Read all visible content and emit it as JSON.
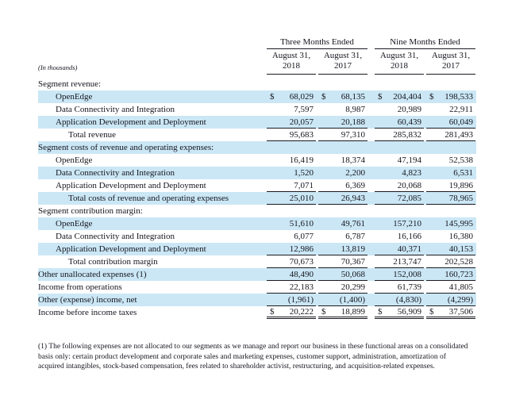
{
  "colors": {
    "row_shade": "#cbe7f5",
    "text": "#15151e",
    "rule": "#1a1a22"
  },
  "table": {
    "in_thousands_note": "(In thousands)",
    "group_headers": [
      "Three Months Ended",
      "Nine Months Ended"
    ],
    "columns": [
      {
        "month": "August 31,",
        "year": "2018"
      },
      {
        "month": "August 31,",
        "year": "2017"
      },
      {
        "month": "August 31,",
        "year": "2018"
      },
      {
        "month": "August 31,",
        "year": "2017"
      }
    ],
    "rows": [
      {
        "label": "Segment revenue:"
      },
      {
        "label": "OpenEdge",
        "currency": "$",
        "values": [
          "68,029",
          "68,135",
          "204,404",
          "198,533"
        ]
      },
      {
        "label": "Data Connectivity and Integration",
        "values": [
          "7,597",
          "8,987",
          "20,989",
          "22,911"
        ]
      },
      {
        "label": "Application Development and Deployment",
        "values": [
          "20,057",
          "20,188",
          "60,439",
          "60,049"
        ]
      },
      {
        "label": "Total revenue",
        "values": [
          "95,683",
          "97,310",
          "285,832",
          "281,493"
        ]
      },
      {
        "label": "Segment costs of revenue and operating expenses:"
      },
      {
        "label": "OpenEdge",
        "values": [
          "16,419",
          "18,374",
          "47,194",
          "52,538"
        ]
      },
      {
        "label": "Data Connectivity and Integration",
        "values": [
          "1,520",
          "2,200",
          "4,823",
          "6,531"
        ]
      },
      {
        "label": "Application Development and Deployment",
        "values": [
          "7,071",
          "6,369",
          "20,068",
          "19,896"
        ]
      },
      {
        "label": "Total costs of revenue and operating expenses",
        "values": [
          "25,010",
          "26,943",
          "72,085",
          "78,965"
        ]
      },
      {
        "label": "Segment contribution margin:"
      },
      {
        "label": "OpenEdge",
        "values": [
          "51,610",
          "49,761",
          "157,210",
          "145,995"
        ]
      },
      {
        "label": "Data Connectivity and Integration",
        "values": [
          "6,077",
          "6,787",
          "16,166",
          "16,380"
        ]
      },
      {
        "label": "Application Development and Deployment",
        "values": [
          "12,986",
          "13,819",
          "40,371",
          "40,153"
        ]
      },
      {
        "label": "Total contribution margin",
        "values": [
          "70,673",
          "70,367",
          "213,747",
          "202,528"
        ]
      },
      {
        "label": "Other unallocated expenses (1)",
        "values": [
          "48,490",
          "50,068",
          "152,008",
          "160,723"
        ]
      },
      {
        "label": "Income from operations",
        "values": [
          "22,183",
          "20,299",
          "61,739",
          "41,805"
        ]
      },
      {
        "label": "Other (expense) income, net",
        "values": [
          "(1,961)",
          "(1,400)",
          "(4,830)",
          "(4,299)"
        ]
      },
      {
        "label": "Income before income taxes",
        "currency": "$",
        "values": [
          "20,222",
          "18,899",
          "56,909",
          "37,506"
        ]
      }
    ]
  },
  "footnote": "(1) The following expenses are not allocated to our segments as we manage and report our business in these functional areas on a consolidated basis only: certain product development and corporate sales and marketing expenses, customer support, administration, amortization of acquired intangibles, stock-based compensation, fees related to shareholder activist, restructuring, and acquisition-related expenses."
}
